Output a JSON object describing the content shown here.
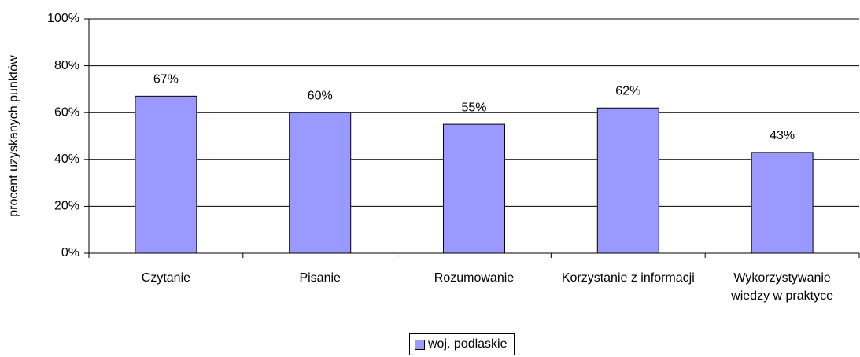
{
  "chart_data": {
    "type": "bar",
    "y_axis_label": "procent uzyskanych punktów",
    "categories": [
      "Czytanie",
      "Pisanie",
      "Rozumowanie",
      "Korzystanie z informacji",
      "Wykorzystywanie wiedzy w praktyce"
    ],
    "series": [
      {
        "name": "woj. podlaskie",
        "color": "#9999ff",
        "values": [
          67,
          60,
          55,
          62,
          43
        ],
        "value_labels": [
          "67%",
          "60%",
          "55%",
          "62%",
          "43%"
        ]
      }
    ],
    "ylim": [
      0,
      100
    ],
    "yticks": [
      {
        "value": 0,
        "label": "0%"
      },
      {
        "value": 20,
        "label": "20%"
      },
      {
        "value": 40,
        "label": "40%"
      },
      {
        "value": 60,
        "label": "60%"
      },
      {
        "value": 80,
        "label": "80%"
      },
      {
        "value": 100,
        "label": "100%"
      }
    ],
    "grid": true,
    "legend": "bottom"
  }
}
